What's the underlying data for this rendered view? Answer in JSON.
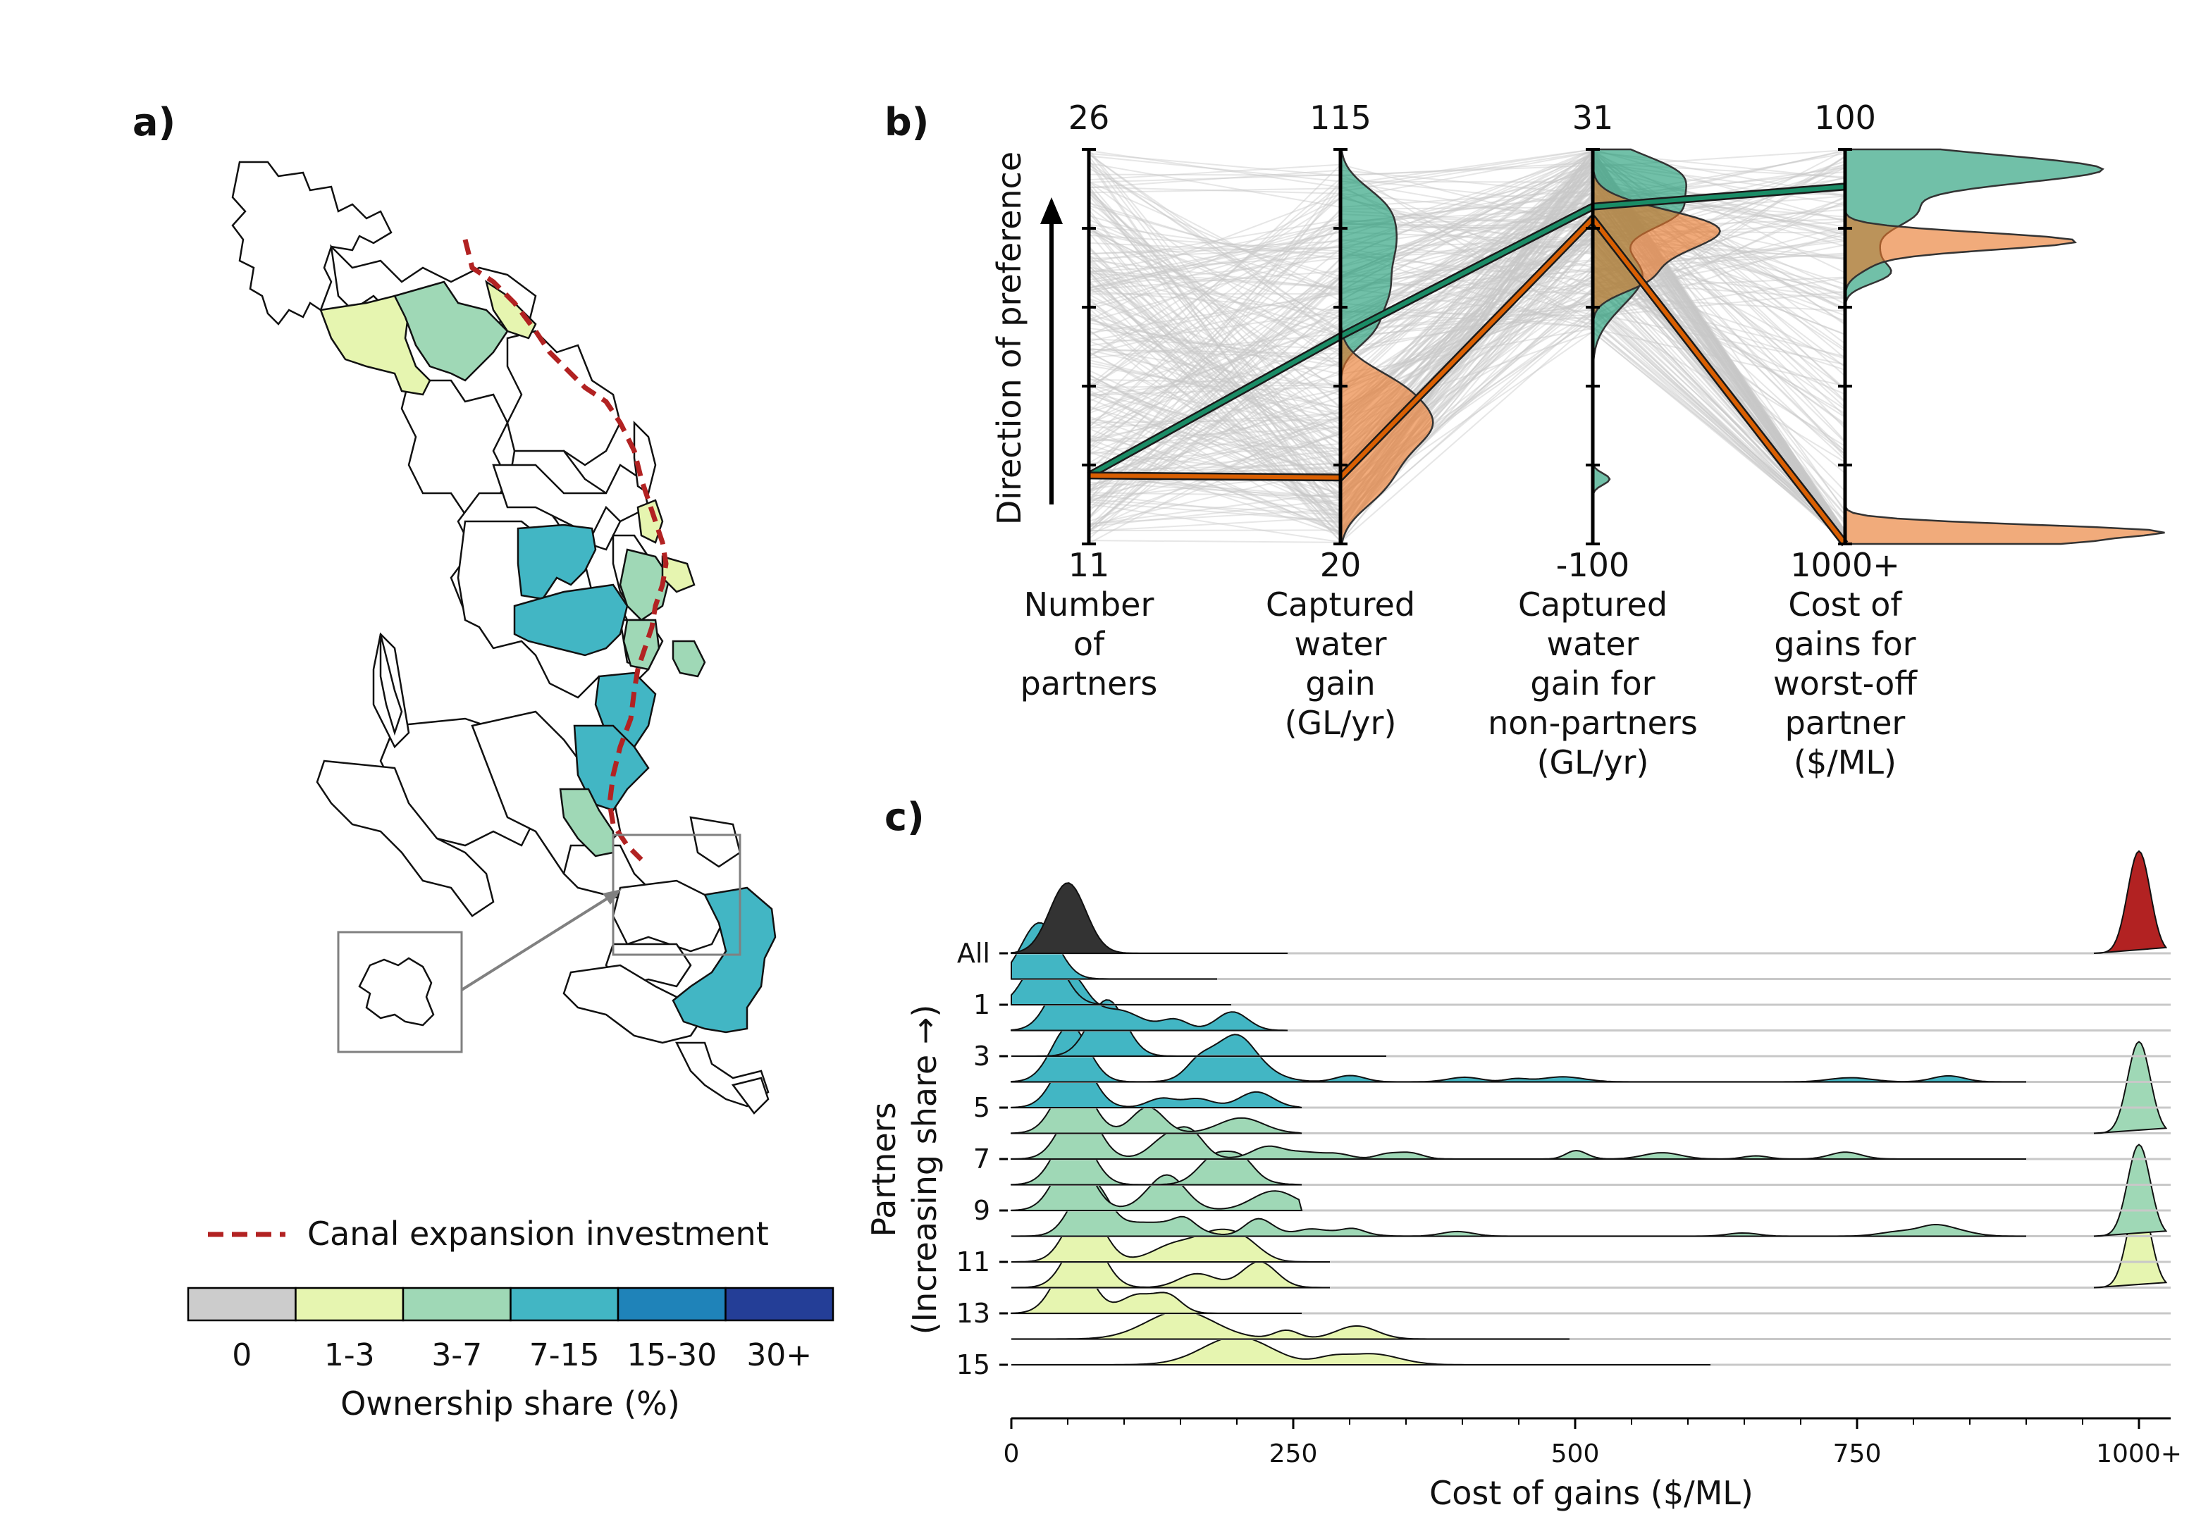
{
  "panels": {
    "a": {
      "label": "a)",
      "canal_legend_label": "Canal expansion investment",
      "colorbar_labels": [
        "0",
        "1-3",
        "3-7",
        "7-15",
        "15-30",
        "30+"
      ],
      "colorbar_title": "Ownership share (%)",
      "share_colors": [
        "#cccccc",
        "#e6f5b0",
        "#9fd8b6",
        "#42b6c4",
        "#1f83b9",
        "#243e97"
      ],
      "canal_color": "#b22222"
    },
    "b": {
      "label": "b)",
      "ylabel": "Direction of preference",
      "selected_colors": [
        "#1a8c66",
        "#d95f02"
      ]
    },
    "c": {
      "label": "c)",
      "ylabel_line1": "Partners",
      "ylabel_line2": "(Increasing share →)",
      "xlabel": "Cost of gains ($/ML)"
    }
  },
  "chart_data": [
    {
      "type": "map",
      "panel": "a",
      "legend": [
        "Canal expansion investment"
      ],
      "colorbar": {
        "title": "Ownership share (%)",
        "bins": [
          "0",
          "1-3",
          "3-7",
          "7-15",
          "15-30",
          "30+"
        ]
      }
    },
    {
      "type": "line",
      "subtype": "parallel-coordinates",
      "panel": "b",
      "ylabel": "Direction of preference",
      "axes": [
        {
          "label": "Number of partners",
          "label_lines": [
            "Number",
            "of",
            "partners"
          ],
          "top": "26",
          "bottom": "11",
          "min": 11,
          "max": 26
        },
        {
          "label": "Captured water gain (GL/yr)",
          "label_lines": [
            "Captured",
            "water",
            "gain",
            "(GL/yr)"
          ],
          "top": "115",
          "bottom": "20",
          "min": 20,
          "max": 115
        },
        {
          "label": "Captured water gain for non-partners (GL/yr)",
          "label_lines": [
            "Captured",
            "water",
            "gain for",
            "non-partners",
            "(GL/yr)"
          ],
          "top": "31",
          "bottom": "-100",
          "min": -100,
          "max": 31
        },
        {
          "label": "Cost of gains for worst-off partner ($/ML)",
          "label_lines": [
            "Cost of",
            "gains for",
            "worst-off",
            "partner",
            "($/ML)"
          ],
          "top": "100",
          "bottom": "1000+",
          "min": 100,
          "max": 1000
        }
      ],
      "highlighted": [
        {
          "color": "#1a8c66",
          "values": [
            13.6,
            70,
            12,
            185
          ]
        },
        {
          "color": "#d95f02",
          "values": [
            13.6,
            36,
            8,
            1000
          ]
        }
      ]
    },
    {
      "type": "ridgeline",
      "panel": "c",
      "xlabel": "Cost of gains ($/ML)",
      "ylabel": "Partners (Increasing share →)",
      "xlim": [
        0,
        1000
      ],
      "xticks": [
        "0",
        "250",
        "500",
        "750",
        "1000+"
      ],
      "yticks": [
        "All",
        "1",
        "3",
        "5",
        "7",
        "9",
        "11",
        "13",
        "15"
      ],
      "rows": [
        "All",
        "1",
        "2",
        "3",
        "4",
        "5",
        "6",
        "7",
        "8",
        "9",
        "10",
        "11",
        "12",
        "13",
        "14",
        "15",
        "16"
      ],
      "row_colors": [
        "#333333",
        "#42b6c4",
        "#42b6c4",
        "#42b6c4",
        "#42b6c4",
        "#42b6c4",
        "#42b6c4",
        "#9fd8b6",
        "#9fd8b6",
        "#9fd8b6",
        "#9fd8b6",
        "#9fd8b6",
        "#e6f5b0",
        "#e6f5b0",
        "#e6f5b0",
        "#e6f5b0",
        "#e6f5b0"
      ],
      "peaks": [
        {
          "row": "All",
          "cost": 50,
          "outlier_peak": 1000,
          "outlier_color": "#b22222"
        },
        {
          "row": "1",
          "cost": 25
        },
        {
          "row": "2",
          "cost": 30
        },
        {
          "row": "3",
          "cost": 50
        },
        {
          "row": "4",
          "cost": 85
        },
        {
          "row": "5",
          "cost": 52
        },
        {
          "row": "6",
          "cost": 55
        },
        {
          "row": "7",
          "cost": 55,
          "outlier_peak": 1000
        },
        {
          "row": "8",
          "cost": 60
        },
        {
          "row": "9",
          "cost": 55
        },
        {
          "row": "10",
          "cost": 55
        },
        {
          "row": "11",
          "cost": 70,
          "outlier_peak": 1000
        },
        {
          "row": "12",
          "cost": 65
        },
        {
          "row": "13",
          "cost": 65,
          "outlier_peak": 1000
        },
        {
          "row": "14",
          "cost": 55
        },
        {
          "row": "15",
          "cost": 150
        },
        {
          "row": "16",
          "cost": 200
        }
      ]
    }
  ]
}
